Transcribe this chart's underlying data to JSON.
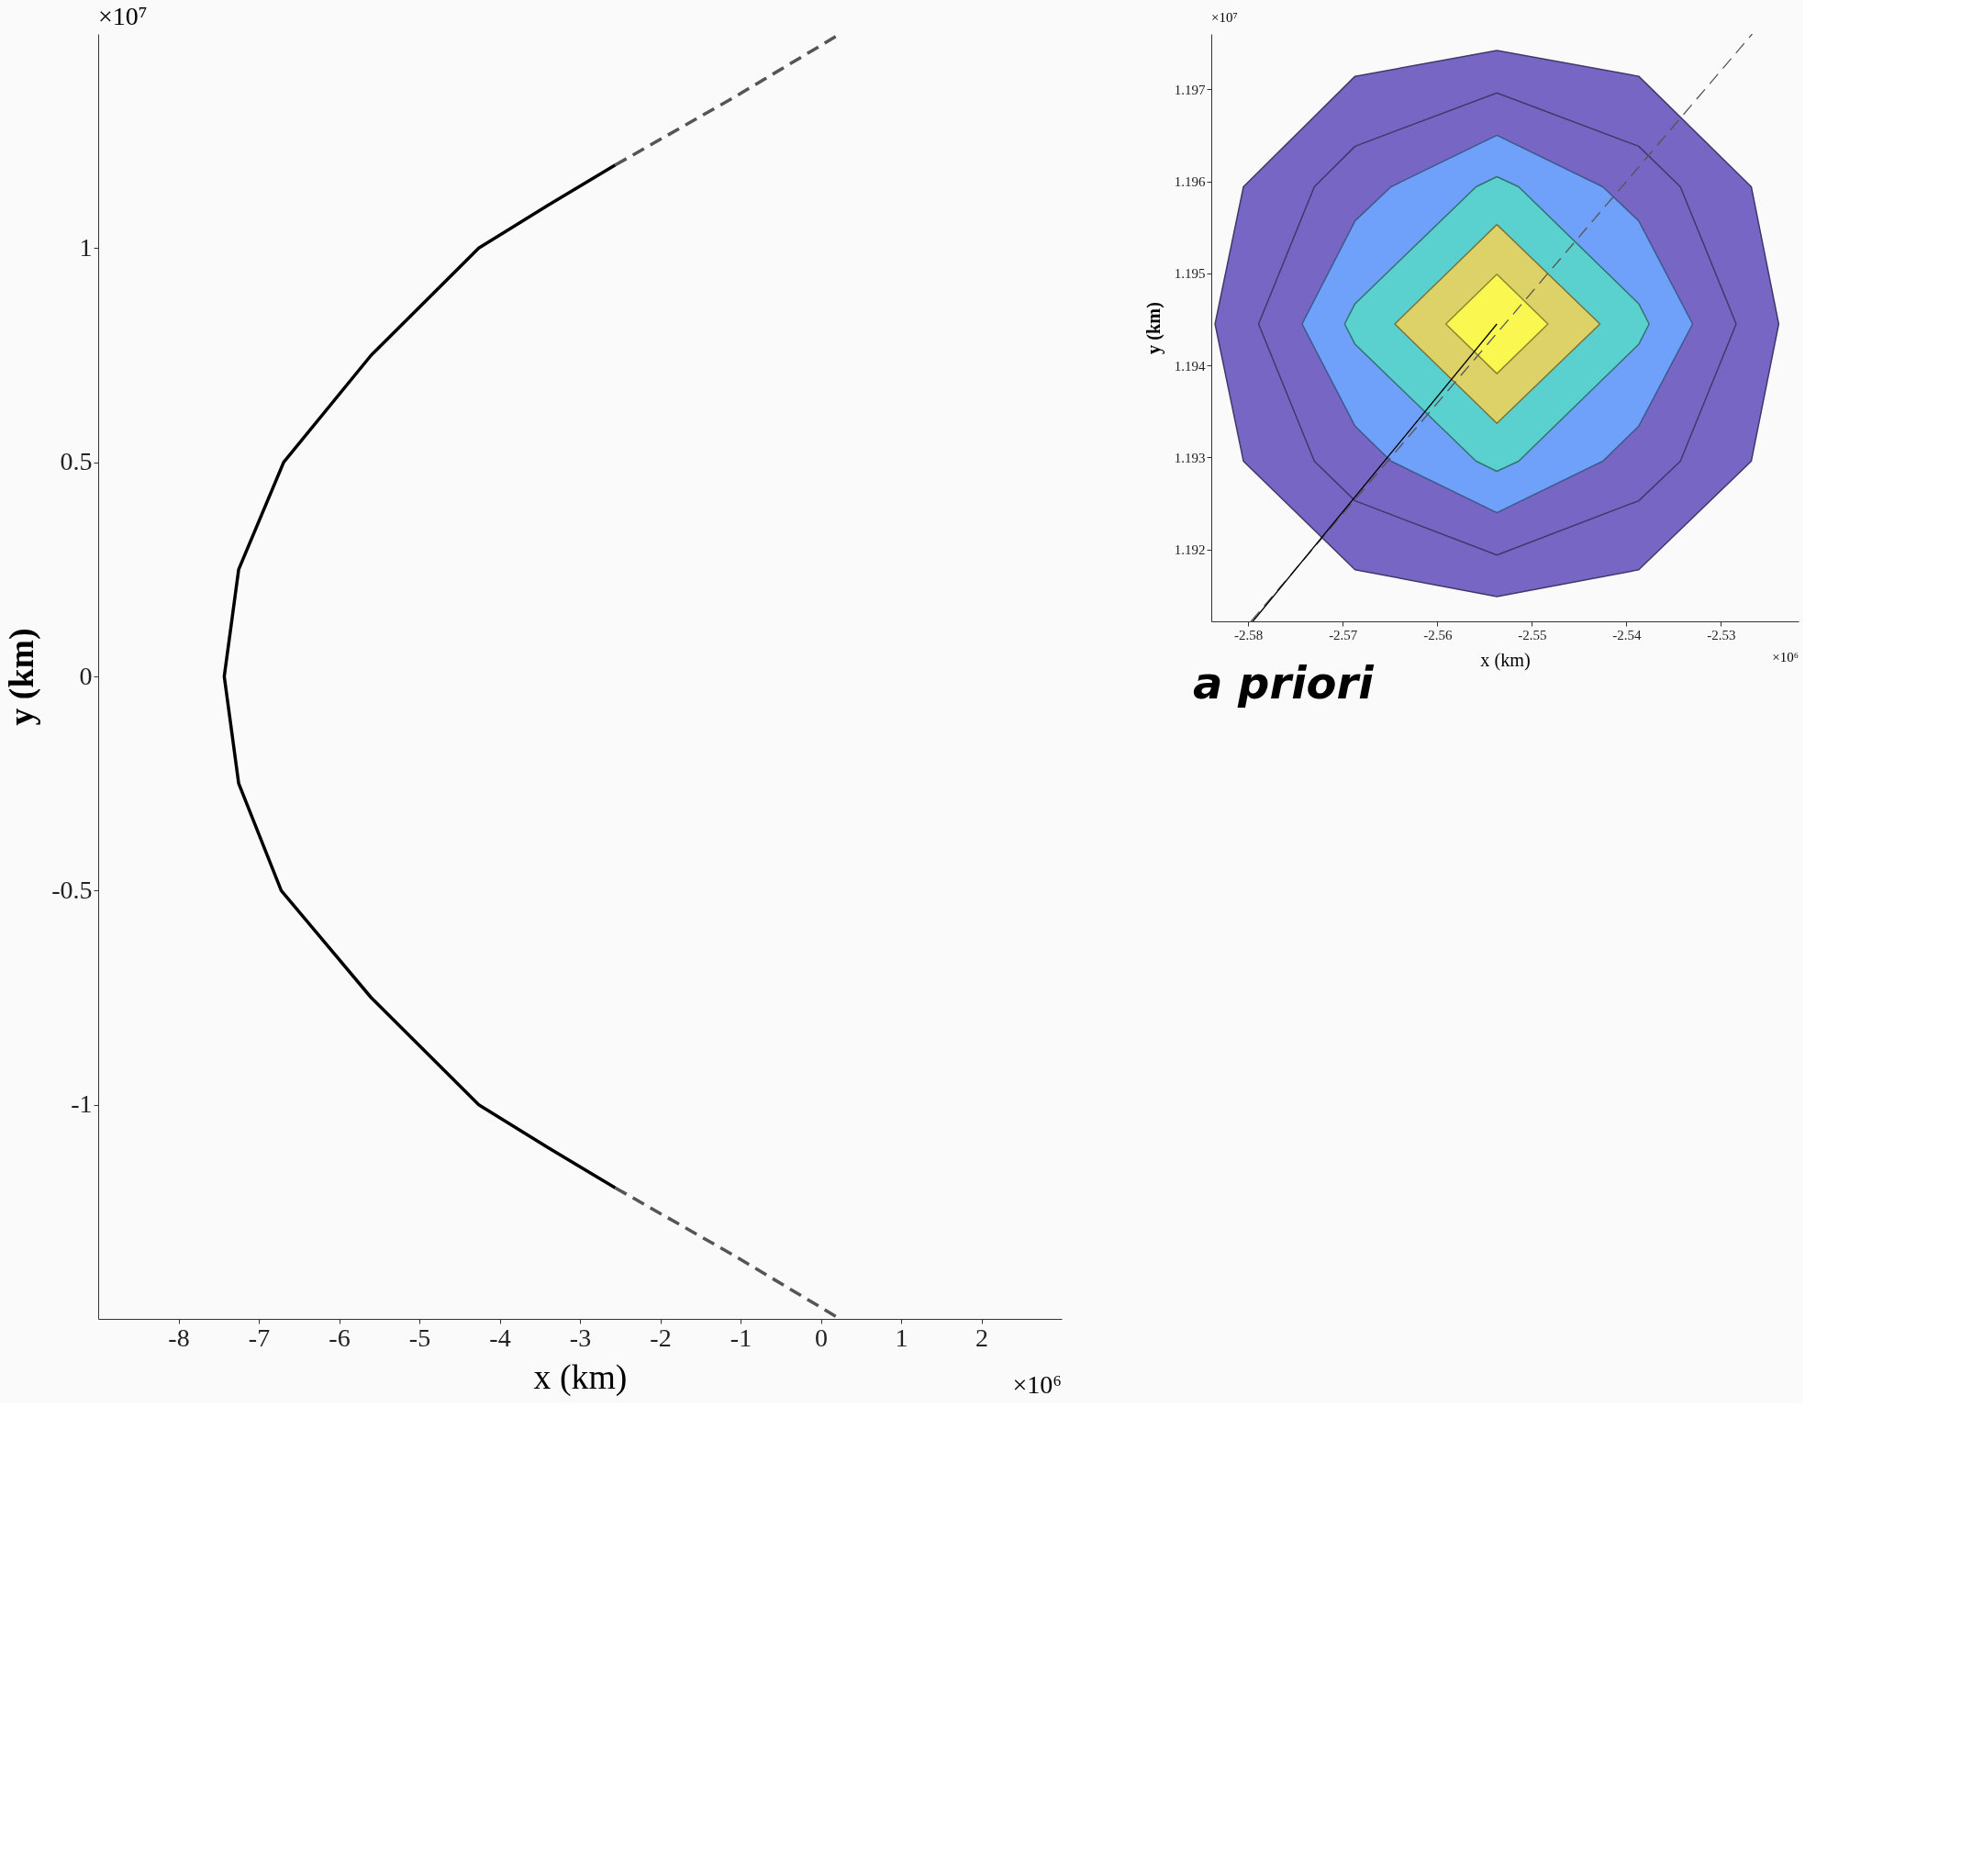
{
  "chart_data": [
    {
      "type": "line",
      "xlabel": "x (km)",
      "ylabel": "y (km)",
      "xlim": [
        -9,
        3
      ],
      "ylim": [
        -1.5,
        1.5
      ],
      "xticks": [
        -8,
        -7,
        -6,
        -5,
        -4,
        -3,
        -2,
        -1,
        0,
        1,
        2
      ],
      "yticks": [
        -1,
        -0.5,
        0,
        0.5,
        1
      ],
      "grid": false,
      "annotations": [
        "×10⁷",
        "×10⁶"
      ],
      "series": [
        {
          "color": "#000000",
          "line_style": "solid",
          "x": [
            -2.56,
            -3.4,
            -4.26,
            -5.6,
            -6.69,
            -7.25,
            -7.43,
            -7.25,
            -6.72,
            -5.6,
            -4.26,
            -3.4,
            -2.56
          ],
          "values": [
            1.194,
            1.1,
            1.0,
            0.75,
            0.5,
            0.25,
            0,
            -0.25,
            -0.5,
            -0.75,
            -1.0,
            -1.1,
            -1.194
          ]
        },
        {
          "color": "#555555",
          "line_style": "dashed",
          "x": [
            -2.56,
            -1.1,
            0.24
          ],
          "values": [
            1.194,
            1.35,
            1.5
          ]
        },
        {
          "color": "#555555",
          "line_style": "dashed",
          "x": [
            -2.56,
            -1.1,
            0.24
          ],
          "values": [
            -1.194,
            -1.35,
            -1.5
          ]
        }
      ]
    },
    {
      "type": "area",
      "xlabel": "x (km)",
      "ylabel": "y (km)",
      "xlim": [
        -2.5839,
        -2.5218
      ],
      "ylim": [
        1.19122,
        1.1976
      ],
      "xticks": [
        -2.58,
        -2.57,
        -2.56,
        -2.55,
        -2.54,
        -2.53
      ],
      "yticks": [
        1.192,
        1.193,
        1.194,
        1.195,
        1.196,
        1.197
      ],
      "grid": false,
      "annotations": [
        "×10⁷",
        "×10⁶",
        "a priori"
      ],
      "series": [
        {
          "color": "#7766c4",
          "x": [
            -2.5537,
            -2.5387,
            -2.5268,
            -2.5239,
            -2.5268,
            -2.5387,
            -2.5537,
            -2.5687,
            -2.5805,
            -2.5835,
            -2.5805,
            -2.5687,
            -2.5537
          ],
          "values": [
            1.19742,
            1.19714,
            1.19594,
            1.19445,
            1.19296,
            1.19178,
            1.19149,
            1.19178,
            1.19296,
            1.19445,
            1.19594,
            1.19714,
            1.19742
          ]
        },
        {
          "color": "#7766c4",
          "x": [
            -2.5537,
            -2.5387,
            -2.5343,
            -2.5284,
            -2.5343,
            -2.5387,
            -2.5537,
            -2.5687,
            -2.573,
            -2.5789,
            -2.573,
            -2.5687,
            -2.5537
          ],
          "values": [
            1.19696,
            1.19638,
            1.19594,
            1.19445,
            1.19296,
            1.19253,
            1.19194,
            1.19253,
            1.19296,
            1.19445,
            1.19594,
            1.19638,
            1.19696
          ]
        },
        {
          "color": "#6fa0fa",
          "x": [
            -2.5537,
            -2.5425,
            -2.5387,
            -2.533,
            -2.5387,
            -2.5425,
            -2.5537,
            -2.5649,
            -2.5687,
            -2.5743,
            -2.5687,
            -2.5649,
            -2.5537
          ],
          "values": [
            1.1965,
            1.19594,
            1.19557,
            1.19445,
            1.19334,
            1.19296,
            1.1924,
            1.19296,
            1.19334,
            1.19445,
            1.19557,
            1.19594,
            1.1965
          ]
        },
        {
          "color": "#5ad1ce",
          "x": [
            -2.5537,
            -2.5514,
            -2.5387,
            -2.5376,
            -2.5387,
            -2.5514,
            -2.5537,
            -2.5559,
            -2.5687,
            -2.5698,
            -2.5687,
            -2.5559,
            -2.5537
          ],
          "values": [
            1.19605,
            1.19594,
            1.19467,
            1.19445,
            1.19423,
            1.19296,
            1.19285,
            1.19296,
            1.19423,
            1.19445,
            1.19467,
            1.19594,
            1.19605
          ]
        },
        {
          "color": "#dcd268",
          "x": [
            -2.5537,
            -2.5428,
            -2.5537,
            -2.5645,
            -2.5537
          ],
          "values": [
            1.19553,
            1.19445,
            1.19337,
            1.19445,
            1.19553
          ]
        },
        {
          "color": "#fbf751",
          "x": [
            -2.5537,
            -2.5483,
            -2.5537,
            -2.5591,
            -2.5537
          ],
          "values": [
            1.19499,
            1.19445,
            1.19391,
            1.19445,
            1.19499
          ]
        },
        {
          "type": "line",
          "color": "#555555",
          "line_style": "dashed",
          "x": [
            -2.5797,
            -2.5267
          ],
          "values": [
            1.19122,
            1.1976
          ]
        },
        {
          "type": "line",
          "color": "#000000",
          "line_style": "solid",
          "x": [
            -2.5795,
            -2.5537
          ],
          "values": [
            1.19122,
            1.19445
          ]
        }
      ]
    }
  ]
}
